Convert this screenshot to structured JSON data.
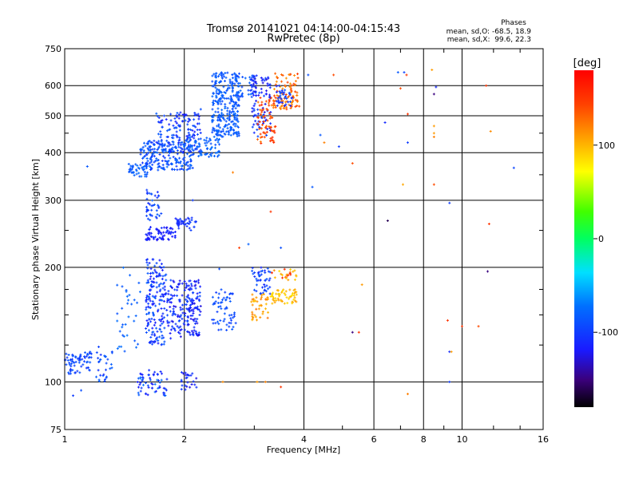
{
  "chart_data": {
    "type": "scatter",
    "title": "Tromsø 20141021 04:14:00-04:15:43",
    "subtitle": "RwPretec (8p)",
    "phases": {
      "header": "Phases",
      "line_o": "mean, sd,O: -68.5, 18.9",
      "line_x": "mean, sd,X:  99.6, 22.3"
    },
    "xlabel": "Frequency [MHz]",
    "ylabel": "Stationary phase Virtual Height [km]",
    "x_scale": "log",
    "y_scale": "log",
    "xlim": [
      1,
      16
    ],
    "ylim": [
      75,
      750
    ],
    "x_ticks": [
      1,
      2,
      4,
      6,
      8,
      10,
      16
    ],
    "x_tick_labels": [
      "1",
      "2",
      "4",
      "6",
      "8",
      "10",
      "16"
    ],
    "y_ticks": [
      75,
      100,
      200,
      300,
      400,
      500,
      600,
      750
    ],
    "y_tick_labels": [
      "75",
      "100",
      "200",
      "300",
      "400",
      "500",
      "600",
      "750"
    ],
    "grid": true,
    "colorbar": {
      "label": "[deg]",
      "min": -180,
      "max": 180,
      "ticks": [
        100,
        0,
        -100
      ],
      "tick_labels": [
        "100",
        "0",
        "-100"
      ]
    },
    "clusters": [
      {
        "name": "low-1.0",
        "f": [
          1.0,
          1.17
        ],
        "h": [
          105,
          120
        ],
        "phase": -95,
        "spread": 12,
        "n": 70
      },
      {
        "name": "low-1.25",
        "f": [
          1.2,
          1.32
        ],
        "h": [
          100,
          125
        ],
        "phase": -95,
        "spread": 15,
        "n": 30
      },
      {
        "name": "E-1.6",
        "f": [
          1.52,
          1.82
        ],
        "h": [
          92,
          108
        ],
        "phase": -95,
        "spread": 25,
        "n": 60
      },
      {
        "name": "E-2.1",
        "f": [
          1.95,
          2.15
        ],
        "h": [
          95,
          106
        ],
        "phase": -110,
        "spread": 15,
        "n": 25
      },
      {
        "name": "mid-1.65",
        "f": [
          1.6,
          1.8
        ],
        "h": [
          125,
          210
        ],
        "phase": -100,
        "spread": 20,
        "n": 180
      },
      {
        "name": "mid-1.85",
        "f": [
          1.8,
          2.2
        ],
        "h": [
          130,
          185
        ],
        "phase": -110,
        "spread": 18,
        "n": 200
      },
      {
        "name": "mid-1.4",
        "f": [
          1.35,
          1.55
        ],
        "h": [
          120,
          200
        ],
        "phase": -80,
        "spread": 10,
        "n": 35
      },
      {
        "name": "trace-1.7-250",
        "f": [
          1.6,
          1.9
        ],
        "h": [
          235,
          255
        ],
        "phase": -115,
        "spread": 10,
        "n": 70
      },
      {
        "name": "trace-2.0-265",
        "f": [
          1.9,
          2.15
        ],
        "h": [
          250,
          270
        ],
        "phase": -105,
        "spread": 10,
        "n": 40
      },
      {
        "name": "col-1.65-290",
        "f": [
          1.6,
          1.75
        ],
        "h": [
          265,
          320
        ],
        "phase": -95,
        "spread": 15,
        "n": 40
      },
      {
        "name": "mid-2.5",
        "f": [
          2.35,
          2.7
        ],
        "h": [
          135,
          175
        ],
        "phase": -92,
        "spread": 10,
        "n": 60
      },
      {
        "name": "mid-3.1",
        "f": [
          2.95,
          3.3
        ],
        "h": [
          170,
          200
        ],
        "phase": -100,
        "spread": 15,
        "n": 45
      },
      {
        "name": "yel-3.0",
        "f": [
          2.95,
          3.25
        ],
        "h": [
          145,
          170
        ],
        "phase": 110,
        "spread": 15,
        "n": 40
      },
      {
        "name": "yel-3.5",
        "f": [
          3.3,
          3.85
        ],
        "h": [
          160,
          175
        ],
        "phase": 95,
        "spread": 15,
        "n": 55
      },
      {
        "name": "mix-3.5",
        "f": [
          3.3,
          3.85
        ],
        "h": [
          185,
          198
        ],
        "phase": 125,
        "spread": 40,
        "n": 25
      },
      {
        "name": "F-1.45",
        "f": [
          1.45,
          1.62
        ],
        "h": [
          345,
          375
        ],
        "phase": -82,
        "spread": 10,
        "n": 40
      },
      {
        "name": "F-1.6",
        "f": [
          1.55,
          2.1
        ],
        "h": [
          360,
          430
        ],
        "phase": -88,
        "spread": 15,
        "n": 200
      },
      {
        "name": "F-1.8",
        "f": [
          1.7,
          2.2
        ],
        "h": [
          400,
          510
        ],
        "phase": -100,
        "spread": 20,
        "n": 150
      },
      {
        "name": "F-2.2",
        "f": [
          2.05,
          2.45
        ],
        "h": [
          390,
          440
        ],
        "phase": -80,
        "spread": 10,
        "n": 60
      },
      {
        "name": "F-2.5",
        "f": [
          2.35,
          2.75
        ],
        "h": [
          440,
          650
        ],
        "phase": -85,
        "spread": 10,
        "n": 280
      },
      {
        "name": "F-2.9",
        "f": [
          2.7,
          3.05
        ],
        "h": [
          560,
          640
        ],
        "phase": -88,
        "spread": 15,
        "n": 40
      },
      {
        "name": "blu-3.1",
        "f": [
          2.95,
          3.3
        ],
        "h": [
          440,
          640
        ],
        "phase": -110,
        "spread": 20,
        "n": 90
      },
      {
        "name": "org-3.1",
        "f": [
          3.05,
          3.4
        ],
        "h": [
          420,
          560
        ],
        "phase": 140,
        "spread": 20,
        "n": 70
      },
      {
        "name": "org-3.5",
        "f": [
          3.35,
          3.9
        ],
        "h": [
          520,
          650
        ],
        "phase": 130,
        "spread": 20,
        "n": 90
      },
      {
        "name": "blu-3.6",
        "f": [
          3.4,
          3.75
        ],
        "h": [
          530,
          600
        ],
        "phase": -100,
        "spread": 15,
        "n": 35
      }
    ],
    "sparse_points": [
      {
        "f": 1.14,
        "h": 368,
        "phase": -85
      },
      {
        "f": 1.1,
        "h": 95,
        "phase": -90
      },
      {
        "f": 1.05,
        "h": 92,
        "phase": -100
      },
      {
        "f": 2.12,
        "h": 470,
        "phase": -85
      },
      {
        "f": 2.2,
        "h": 520,
        "phase": -90
      },
      {
        "f": 2.1,
        "h": 300,
        "phase": -100
      },
      {
        "f": 2.65,
        "h": 355,
        "phase": 120
      },
      {
        "f": 2.45,
        "h": 198,
        "phase": -90
      },
      {
        "f": 2.9,
        "h": 230,
        "phase": -80
      },
      {
        "f": 2.75,
        "h": 225,
        "phase": 145
      },
      {
        "f": 3.3,
        "h": 280,
        "phase": 150
      },
      {
        "f": 3.5,
        "h": 225,
        "phase": -90
      },
      {
        "f": 2.5,
        "h": 100,
        "phase": 115
      },
      {
        "f": 3.05,
        "h": 100,
        "phase": 110
      },
      {
        "f": 3.2,
        "h": 100,
        "phase": 120
      },
      {
        "f": 3.5,
        "h": 97,
        "phase": 150
      },
      {
        "f": 4.1,
        "h": 640,
        "phase": -90
      },
      {
        "f": 4.4,
        "h": 445,
        "phase": -85
      },
      {
        "f": 4.5,
        "h": 425,
        "phase": 120
      },
      {
        "f": 4.2,
        "h": 325,
        "phase": -85
      },
      {
        "f": 4.9,
        "h": 415,
        "phase": -100
      },
      {
        "f": 5.3,
        "h": 375,
        "phase": 140
      },
      {
        "f": 5.3,
        "h": 135,
        "phase": -150
      },
      {
        "f": 5.5,
        "h": 135,
        "phase": 150
      },
      {
        "f": 5.6,
        "h": 180,
        "phase": 110
      },
      {
        "f": 4.75,
        "h": 640,
        "phase": 140
      },
      {
        "f": 6.4,
        "h": 480,
        "phase": -110
      },
      {
        "f": 6.5,
        "h": 265,
        "phase": -160
      },
      {
        "f": 7.0,
        "h": 590,
        "phase": 140
      },
      {
        "f": 7.3,
        "h": 505,
        "phase": 150
      },
      {
        "f": 7.3,
        "h": 425,
        "phase": -100
      },
      {
        "f": 7.3,
        "h": 93,
        "phase": 120
      },
      {
        "f": 7.15,
        "h": 650,
        "phase": -95
      },
      {
        "f": 7.1,
        "h": 330,
        "phase": 105
      },
      {
        "f": 7.25,
        "h": 640,
        "phase": 150
      },
      {
        "f": 6.9,
        "h": 650,
        "phase": -85
      },
      {
        "f": 8.5,
        "h": 570,
        "phase": -150
      },
      {
        "f": 8.5,
        "h": 470,
        "phase": 110
      },
      {
        "f": 8.5,
        "h": 450,
        "phase": 110
      },
      {
        "f": 8.5,
        "h": 440,
        "phase": 120
      },
      {
        "f": 8.5,
        "h": 330,
        "phase": 140
      },
      {
        "f": 8.4,
        "h": 660,
        "phase": 110
      },
      {
        "f": 8.6,
        "h": 595,
        "phase": -110
      },
      {
        "f": 9.3,
        "h": 295,
        "phase": -100
      },
      {
        "f": 9.2,
        "h": 145,
        "phase": 150
      },
      {
        "f": 9.3,
        "h": 120,
        "phase": -110
      },
      {
        "f": 9.4,
        "h": 120,
        "phase": 110
      },
      {
        "f": 9.3,
        "h": 100,
        "phase": -100
      },
      {
        "f": 10.0,
        "h": 140,
        "phase": 150
      },
      {
        "f": 11.0,
        "h": 140,
        "phase": 140
      },
      {
        "f": 11.5,
        "h": 600,
        "phase": 150
      },
      {
        "f": 11.6,
        "h": 195,
        "phase": -150
      },
      {
        "f": 11.7,
        "h": 260,
        "phase": 150
      },
      {
        "f": 11.8,
        "h": 455,
        "phase": 115
      },
      {
        "f": 13.5,
        "h": 365,
        "phase": -95
      }
    ]
  }
}
